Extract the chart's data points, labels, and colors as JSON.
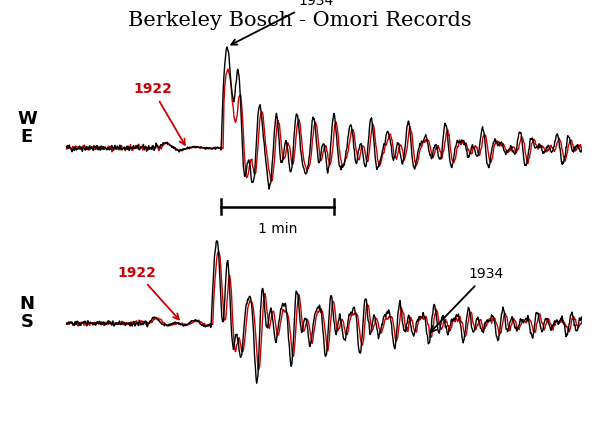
{
  "title": "Berkeley Bosch - Omori Records",
  "title_fontsize": 15,
  "background_color": "#ffffff",
  "we_label_top": "W",
  "we_label_bot": "E",
  "ns_label_top": "N",
  "ns_label_bot": "S",
  "color_1922": "#cc0000",
  "color_1934": "#000000",
  "scale_bar_label": "1 min",
  "n_points": 1200,
  "seed": 42,
  "lw": 1.0
}
